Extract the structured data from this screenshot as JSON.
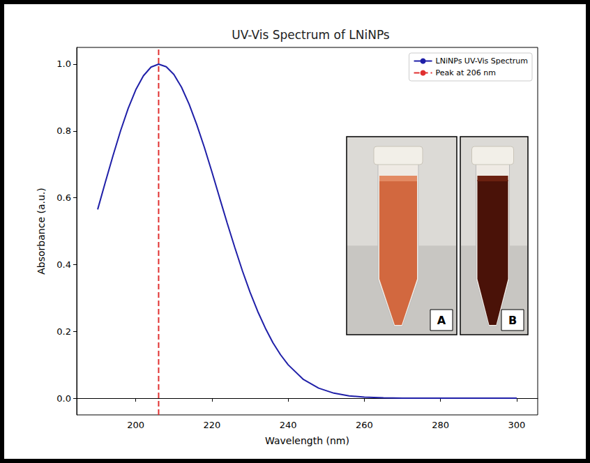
{
  "chart_data": {
    "type": "line",
    "title": "UV-Vis Spectrum of LNiNPs",
    "x_label": "Wavelength (nm)",
    "y_label": "Absorbance (a.u.)",
    "x": [
      190,
      192,
      194,
      196,
      198,
      200,
      202,
      204,
      206,
      208,
      210,
      212,
      214,
      216,
      218,
      220,
      222,
      224,
      226,
      228,
      230,
      232,
      234,
      236,
      238,
      240,
      244,
      248,
      252,
      256,
      260,
      265,
      270,
      280,
      290,
      300
    ],
    "series": [
      {
        "name": "LNiNPs UV-Vis Spectrum",
        "color": "#1f1fa8",
        "values": [
          0.565,
          0.646,
          0.725,
          0.8,
          0.867,
          0.923,
          0.965,
          0.991,
          1.0,
          0.992,
          0.969,
          0.931,
          0.88,
          0.819,
          0.751,
          0.677,
          0.6,
          0.524,
          0.451,
          0.381,
          0.317,
          0.26,
          0.21,
          0.166,
          0.13,
          0.1,
          0.056,
          0.03,
          0.015,
          0.007,
          0.003,
          0.001,
          0,
          0,
          0,
          0
        ]
      }
    ],
    "vline": {
      "name": "Peak at 206 nm",
      "x": 206,
      "color": "#e03030",
      "line_style": "dashed"
    },
    "annotations": [
      "A",
      "B"
    ],
    "xlim": [
      184.5,
      305.5
    ],
    "ylim": [
      -0.05,
      1.05
    ],
    "xticks": [
      200,
      220,
      240,
      260,
      280,
      300
    ],
    "yticks": [
      {
        "value": 0,
        "label": "0.0"
      },
      0.2,
      0.4,
      0.6,
      0.8,
      {
        "value": 1,
        "label": "1.0"
      }
    ],
    "grid": false,
    "legend": "upper right"
  }
}
